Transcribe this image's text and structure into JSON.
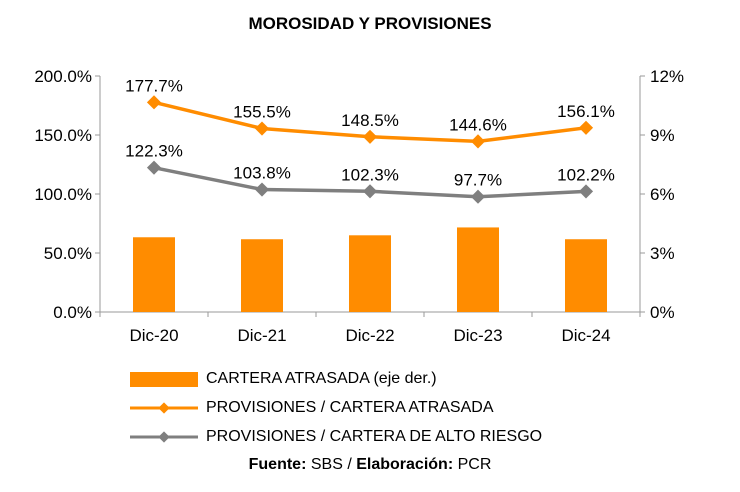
{
  "chart_data": {
    "type": "bar+line",
    "title": "MOROSIDAD Y PROVISIONES",
    "categories": [
      "Dic-20",
      "Dic-21",
      "Dic-22",
      "Dic-23",
      "Dic-24"
    ],
    "left_axis": {
      "min": 0,
      "max": 200,
      "ticks": [
        "0.0%",
        "50.0%",
        "100.0%",
        "150.0%",
        "200.0%"
      ]
    },
    "right_axis": {
      "min": 0,
      "max": 12,
      "ticks": [
        "0%",
        "3%",
        "6%",
        "9%",
        "12%"
      ]
    },
    "series": [
      {
        "name": "CARTERA ATRASADA (eje der.)",
        "type": "bar",
        "axis": "right",
        "color": "#FF8C00",
        "values": [
          3.8,
          3.7,
          3.9,
          4.3,
          3.7
        ]
      },
      {
        "name": "PROVISIONES / CARTERA ATRASADA",
        "type": "line",
        "axis": "left",
        "color": "#FF8C00",
        "values": [
          177.7,
          155.5,
          148.5,
          144.6,
          156.1
        ],
        "labels": [
          "177.7%",
          "155.5%",
          "148.5%",
          "144.6%",
          "156.1%"
        ]
      },
      {
        "name": "PROVISIONES / CARTERA DE ALTO RIESGO",
        "type": "line",
        "axis": "left",
        "color": "#7F7F7F",
        "values": [
          122.3,
          103.8,
          102.3,
          97.7,
          102.2
        ],
        "labels": [
          "122.3%",
          "103.8%",
          "102.3%",
          "97.7%",
          "102.2%"
        ]
      }
    ],
    "grid": false,
    "legend": "bottom"
  },
  "footer": {
    "source_label": "Fuente:",
    "source_value": "SBS",
    "separator": "/",
    "made_label": "Elaboración:",
    "made_value": "PCR"
  }
}
